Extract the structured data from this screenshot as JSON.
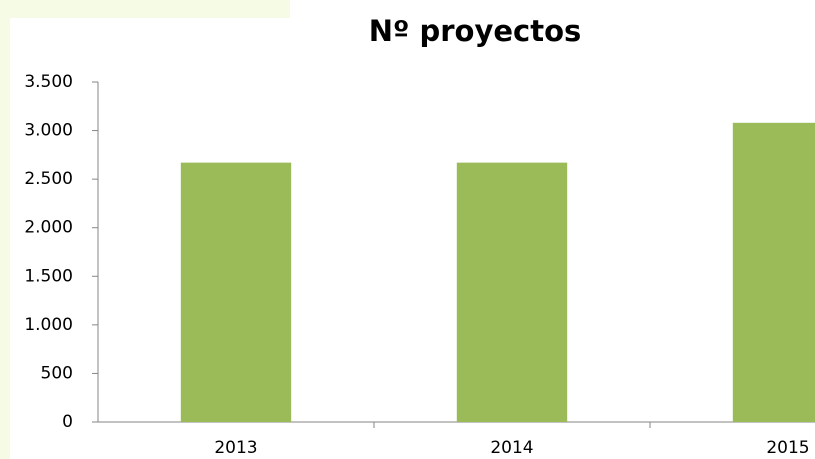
{
  "chart_data": {
    "type": "bar",
    "title": "Nº proyectos",
    "categories": [
      "2013",
      "2014",
      "2015"
    ],
    "values": [
      2670,
      2670,
      3080
    ],
    "color": "#9bbb59",
    "ylim": [
      0,
      3500
    ],
    "yticks": [
      0,
      500,
      {
        "value": 1000,
        "label": "1.000"
      },
      {
        "value": 1500,
        "label": "1.500"
      },
      {
        "value": 2000,
        "label": "2.000"
      },
      {
        "value": 2500,
        "label": "2.500"
      },
      {
        "value": 3000,
        "label": "3.000"
      },
      {
        "value": 3500,
        "label": "3.500"
      }
    ],
    "grid": false
  }
}
